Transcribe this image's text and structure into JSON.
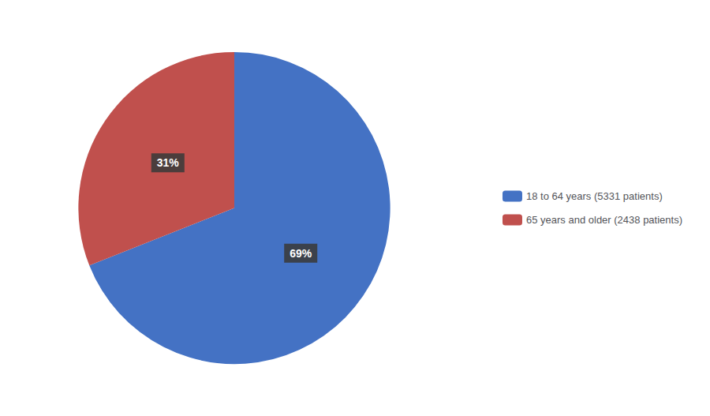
{
  "chart_data": {
    "type": "pie",
    "categories": [
      "18 to 64 years (5331 patients)",
      "65 years and older (2438 patients)"
    ],
    "values": [
      69,
      31
    ],
    "value_labels": [
      "69%",
      "31%"
    ],
    "colors": [
      "#4472C4",
      "#C0504D"
    ],
    "data_labels": true,
    "legend": "right"
  }
}
